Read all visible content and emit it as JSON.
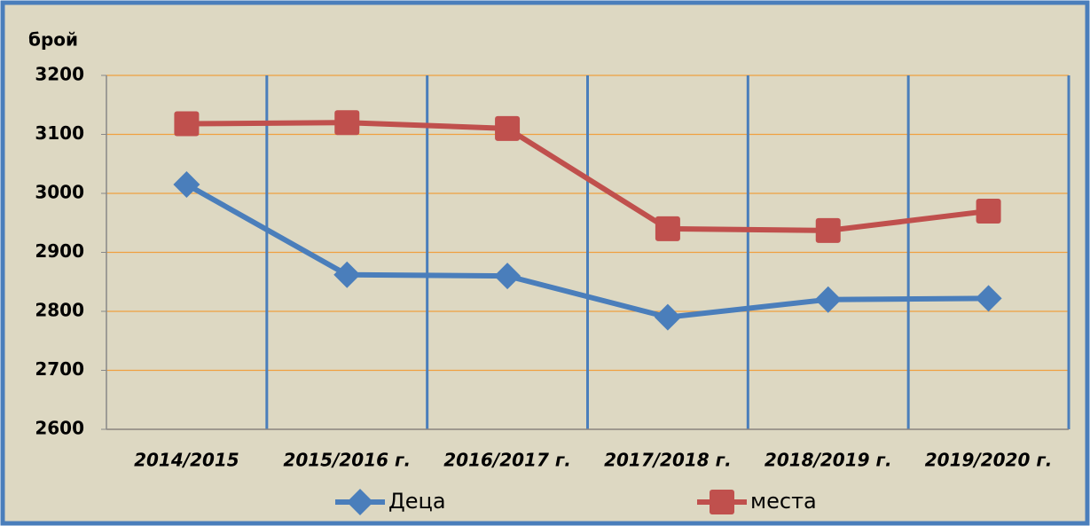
{
  "chart_data": {
    "type": "line",
    "y_label": "брой",
    "categories": [
      "2014/2015",
      "2015/2016 г.",
      "2016/2017 г.",
      "2017/2018 г.",
      "2018/2019 г.",
      "2019/2020 г."
    ],
    "series": [
      {
        "name": "Деца",
        "color": "#4a7ebb",
        "marker": "diamond",
        "values": [
          3015,
          2862,
          2860,
          2790,
          2820,
          2822
        ]
      },
      {
        "name": "места",
        "color": "#c0504d",
        "marker": "square",
        "values": [
          3118,
          3120,
          3110,
          2940,
          2937,
          2970
        ]
      }
    ],
    "ylim": [
      2600,
      3200
    ],
    "yticks": [
      2600,
      2700,
      2800,
      2900,
      3000,
      3100,
      3200
    ],
    "grid": true,
    "legend": "bottom"
  }
}
